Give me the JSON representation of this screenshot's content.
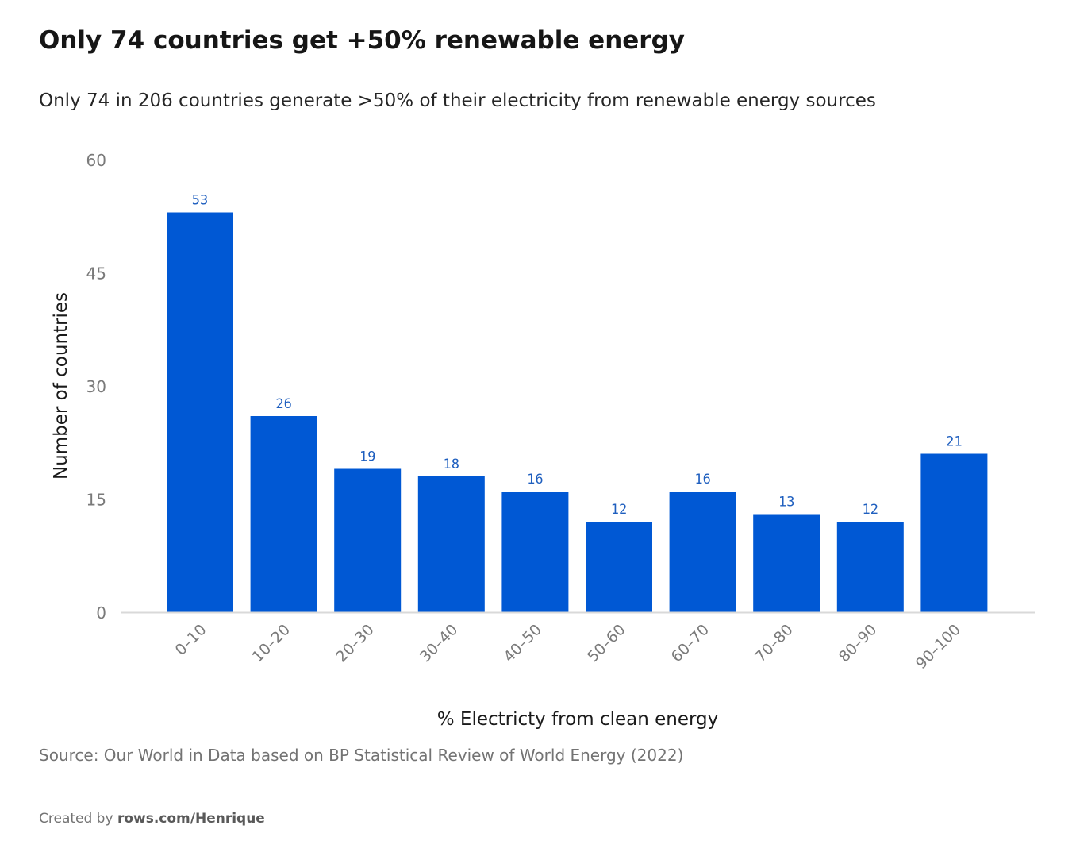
{
  "chart_data": {
    "type": "bar",
    "title": "Only 74 countries get +50% renewable energy",
    "subtitle": "Only 74 in 206 countries generate >50% of their electricity from renewable energy sources",
    "xlabel": "% Electricty from clean energy",
    "ylabel": "Number of countries",
    "categories": [
      "0–10",
      "10–20",
      "20–30",
      "30–40",
      "40–50",
      "50–60",
      "60–70",
      "70–80",
      "80–90",
      "90–100"
    ],
    "values": [
      53,
      26,
      19,
      18,
      16,
      12,
      16,
      13,
      12,
      21
    ],
    "ylim": [
      0,
      60
    ],
    "yticks": [
      0,
      15,
      30,
      45,
      60
    ],
    "bar_color": "#0058d4",
    "label_color": "#1f5fbf",
    "grid": false,
    "legend": "none"
  },
  "footer": {
    "source": "Source: Our World in Data based on BP Statistical Review of World Energy (2022)",
    "created_prefix": "Created by ",
    "created_link": "rows.com/Henrique"
  }
}
